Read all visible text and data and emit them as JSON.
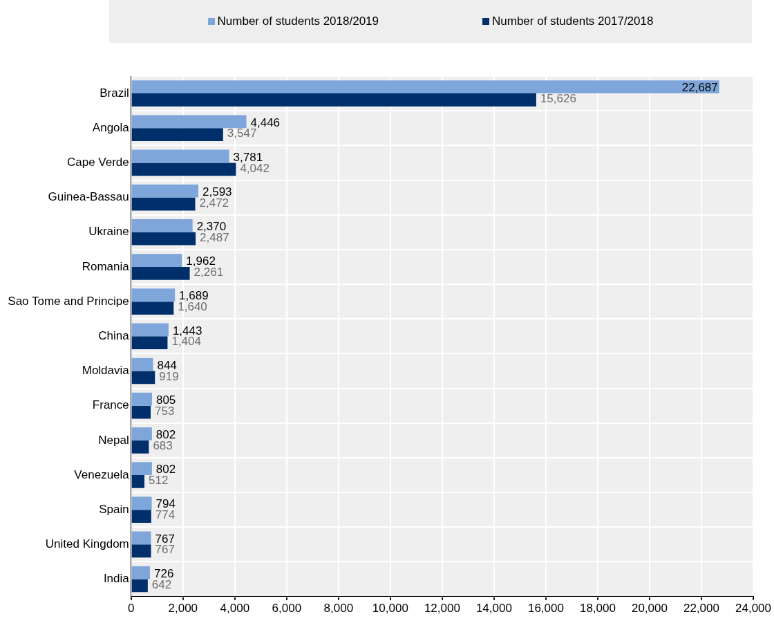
{
  "chart_data": {
    "type": "bar",
    "orientation": "horizontal",
    "categories": [
      "Brazil",
      "Angola",
      "Cape Verde",
      "Guinea-Bassau",
      "Ukraine",
      "Romania",
      "Sao Tome and Principe",
      "China",
      "Moldavia",
      "France",
      "Nepal",
      "Venezuela",
      "Spain",
      "United Kingdom",
      "India"
    ],
    "series": [
      {
        "name": "Number of students 2018/2019",
        "color": "#7ea6db",
        "values": [
          22687,
          4446,
          3781,
          2593,
          2370,
          1962,
          1689,
          1443,
          844,
          805,
          802,
          802,
          794,
          767,
          726
        ],
        "value_labels": [
          "22,687",
          "4,446",
          "3,781",
          "2,593",
          "2,370",
          "1,962",
          "1,689",
          "1,443",
          "844",
          "805",
          "802",
          "802",
          "794",
          "767",
          "726"
        ]
      },
      {
        "name": "Number of students 2017/2018",
        "color": "#002f6c",
        "values": [
          15626,
          3547,
          4042,
          2472,
          2487,
          2261,
          1640,
          1404,
          919,
          753,
          683,
          512,
          774,
          767,
          642
        ],
        "value_labels": [
          "15,626",
          "3,547",
          "4,042",
          "2,472",
          "2,487",
          "2,261",
          "1,640",
          "1,404",
          "919",
          "753",
          "683",
          "512",
          "774",
          "767",
          "642"
        ]
      }
    ],
    "xlim": [
      0,
      24000
    ],
    "xticks": [
      {
        "value": 0,
        "label": "0"
      },
      {
        "value": 2000,
        "label": "2,000"
      },
      {
        "value": 4000,
        "label": "4,000"
      },
      {
        "value": 6000,
        "label": "6,000"
      },
      {
        "value": 8000,
        "label": "8,000"
      },
      {
        "value": 10000,
        "label": "10,000"
      },
      {
        "value": 12000,
        "label": "12,000"
      },
      {
        "value": 14000,
        "label": "14,000"
      },
      {
        "value": 16000,
        "label": "16,000"
      },
      {
        "value": 18000,
        "label": "18,000"
      },
      {
        "value": 20000,
        "label": "20,000"
      },
      {
        "value": 22000,
        "label": "22,000"
      },
      {
        "value": 24000,
        "label": "24,000"
      }
    ],
    "grid": true,
    "legend": "top"
  }
}
